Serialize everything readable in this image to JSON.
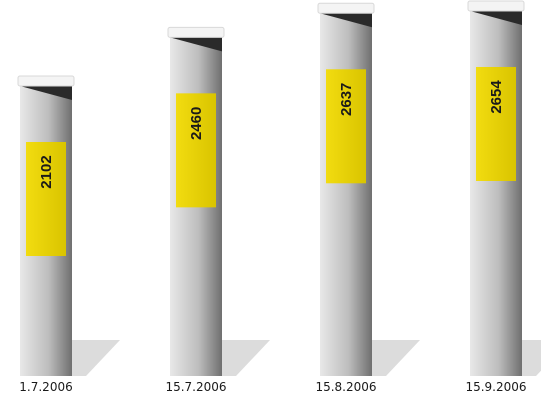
{
  "chart_data": {
    "type": "bar",
    "categories": [
      "1.7.2006",
      "15.7.2006",
      "15.8.2006",
      "15.9.2006"
    ],
    "values": [
      2102,
      2460,
      2637,
      2654
    ],
    "title": "",
    "xlabel": "",
    "ylabel": "",
    "grid": false,
    "style": "3d-cylinder-columns",
    "colors": {
      "column_light": "#e0e0e0",
      "column_dark": "#7a7a7a",
      "cap": "#f4f4f4",
      "cap_shadow": "#2a2a2a",
      "label_box": "#e6d000",
      "floor_shadow": "#dcdcdc"
    }
  }
}
